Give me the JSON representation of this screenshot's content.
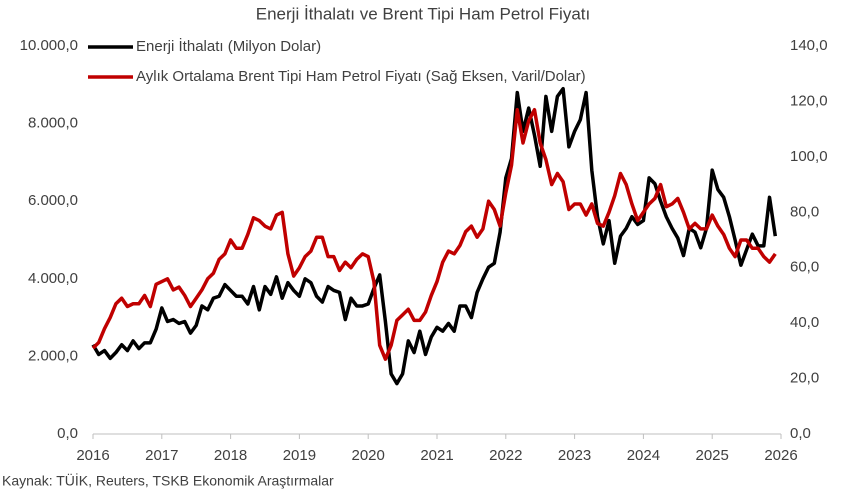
{
  "chart_data": {
    "type": "line",
    "title": "Enerji İthalatı ve Brent Tipi Ham Petrol Fiyatı",
    "source": "Kaynak: TÜİK, Reuters, TSKB Ekonomik Araştırmalar",
    "x": [
      2016,
      2016.083,
      2016.167,
      2016.25,
      2016.333,
      2016.417,
      2016.5,
      2016.583,
      2016.667,
      2016.75,
      2016.833,
      2016.917,
      2017,
      2017.083,
      2017.167,
      2017.25,
      2017.333,
      2017.417,
      2017.5,
      2017.583,
      2017.667,
      2017.75,
      2017.833,
      2017.917,
      2018,
      2018.083,
      2018.167,
      2018.25,
      2018.333,
      2018.417,
      2018.5,
      2018.583,
      2018.667,
      2018.75,
      2018.833,
      2018.917,
      2019,
      2019.083,
      2019.167,
      2019.25,
      2019.333,
      2019.417,
      2019.5,
      2019.583,
      2019.667,
      2019.75,
      2019.833,
      2019.917,
      2020,
      2020.083,
      2020.167,
      2020.25,
      2020.333,
      2020.417,
      2020.5,
      2020.583,
      2020.667,
      2020.75,
      2020.833,
      2020.917,
      2021,
      2021.083,
      2021.167,
      2021.25,
      2021.333,
      2021.417,
      2021.5,
      2021.583,
      2021.667,
      2021.75,
      2021.833,
      2021.917,
      2022,
      2022.083,
      2022.167,
      2022.25,
      2022.333,
      2022.417,
      2022.5,
      2022.583,
      2022.667,
      2022.75,
      2022.833,
      2022.917,
      2023,
      2023.083,
      2023.167,
      2023.25,
      2023.333,
      2023.417,
      2023.5,
      2023.583,
      2023.667,
      2023.75,
      2023.833,
      2023.917,
      2024,
      2024.083,
      2024.167,
      2024.25,
      2024.333,
      2024.417,
      2024.5,
      2024.583,
      2024.667,
      2024.75,
      2024.833,
      2024.917,
      2025,
      2025.083,
      2025.167,
      2025.25,
      2025.333,
      2025.417,
      2025.5,
      2025.583,
      2025.667,
      2025.75,
      2025.833,
      2025.917
    ],
    "series": [
      {
        "name": "Enerji İthalatı (Milyon Dolar)",
        "color": "#000000",
        "axis": "y",
        "values": [
          2300,
          2050,
          2150,
          1950,
          2100,
          2300,
          2150,
          2400,
          2200,
          2350,
          2350,
          2700,
          3250,
          2900,
          2950,
          2850,
          2900,
          2600,
          2800,
          3300,
          3200,
          3500,
          3550,
          3850,
          3700,
          3550,
          3550,
          3350,
          3800,
          3200,
          3800,
          3600,
          4050,
          3500,
          3900,
          3700,
          3550,
          4000,
          3900,
          3550,
          3400,
          3800,
          3700,
          3650,
          2950,
          3500,
          3300,
          3300,
          3350,
          3750,
          4100,
          2900,
          1550,
          1300,
          1550,
          2400,
          2100,
          2650,
          2050,
          2500,
          2750,
          2650,
          2850,
          2650,
          3300,
          3300,
          3000,
          3650,
          4000,
          4300,
          4400,
          5200,
          6600,
          7100,
          8800,
          7800,
          8400,
          7700,
          6900,
          8700,
          7800,
          8700,
          8900,
          7400,
          7800,
          8100,
          8800,
          6800,
          5600,
          4900,
          5500,
          4400,
          5100,
          5300,
          5600,
          5400,
          5500,
          6600,
          6450,
          6000,
          5600,
          5300,
          5050,
          4600,
          5300,
          5200,
          4800,
          5300,
          6800,
          6300,
          6100,
          5600,
          5000,
          4350,
          4750,
          5150,
          4850,
          4850,
          6100,
          5100
        ]
      },
      {
        "name": "Aylık Ortalama Brent Tipi Ham Petrol Fiyatı (Sağ Eksen, Varil/Dolar)",
        "color": "#c00000",
        "axis": "y2",
        "values": [
          31,
          33,
          38,
          42,
          47,
          49,
          46,
          47,
          47,
          50,
          46,
          54,
          55,
          56,
          52,
          53,
          50,
          46,
          49,
          52,
          56,
          58,
          63,
          65,
          70,
          67,
          67,
          72,
          78,
          77,
          75,
          74,
          79,
          80,
          65,
          57,
          60,
          64,
          66,
          71,
          71,
          64,
          64,
          59,
          62,
          60,
          63,
          65,
          64,
          55,
          32,
          27,
          32,
          41,
          43,
          45,
          41,
          41,
          44,
          50,
          55,
          62,
          66,
          65,
          68,
          73,
          75,
          71,
          74,
          84,
          81,
          75,
          87,
          97,
          117,
          105,
          113,
          117,
          105,
          99,
          90,
          94,
          91,
          81,
          83,
          83,
          79,
          83,
          76,
          75,
          80,
          86,
          94,
          90,
          83,
          77,
          80,
          83,
          85,
          90,
          82,
          83,
          85,
          80,
          74,
          76,
          74,
          74,
          79,
          75,
          72,
          67,
          64,
          70,
          70,
          67,
          67,
          64,
          62,
          65
        ]
      }
    ],
    "xlim": [
      2016,
      2026
    ],
    "xticks": [
      2016,
      2017,
      2018,
      2019,
      2020,
      2021,
      2022,
      2023,
      2024,
      2025,
      2026
    ],
    "ylim": [
      0,
      10000
    ],
    "yticks": [
      {
        "value": 0,
        "label": "0,0"
      },
      {
        "value": 2000,
        "label": "2.000,0"
      },
      {
        "value": 4000,
        "label": "4.000,0"
      },
      {
        "value": 6000,
        "label": "6.000,0"
      },
      {
        "value": 8000,
        "label": "8.000,0"
      },
      {
        "value": 10000,
        "label": "10.000,0"
      }
    ],
    "y2lim": [
      0,
      140
    ],
    "y2ticks": [
      {
        "value": 0,
        "label": "0,0"
      },
      {
        "value": 20,
        "label": "20,0"
      },
      {
        "value": 40,
        "label": "40,0"
      },
      {
        "value": 60,
        "label": "60,0"
      },
      {
        "value": 80,
        "label": "80,0"
      },
      {
        "value": 100,
        "label": "100,0"
      },
      {
        "value": 120,
        "label": "120,0"
      },
      {
        "value": 140,
        "label": "140,0"
      }
    ],
    "grid": false
  }
}
